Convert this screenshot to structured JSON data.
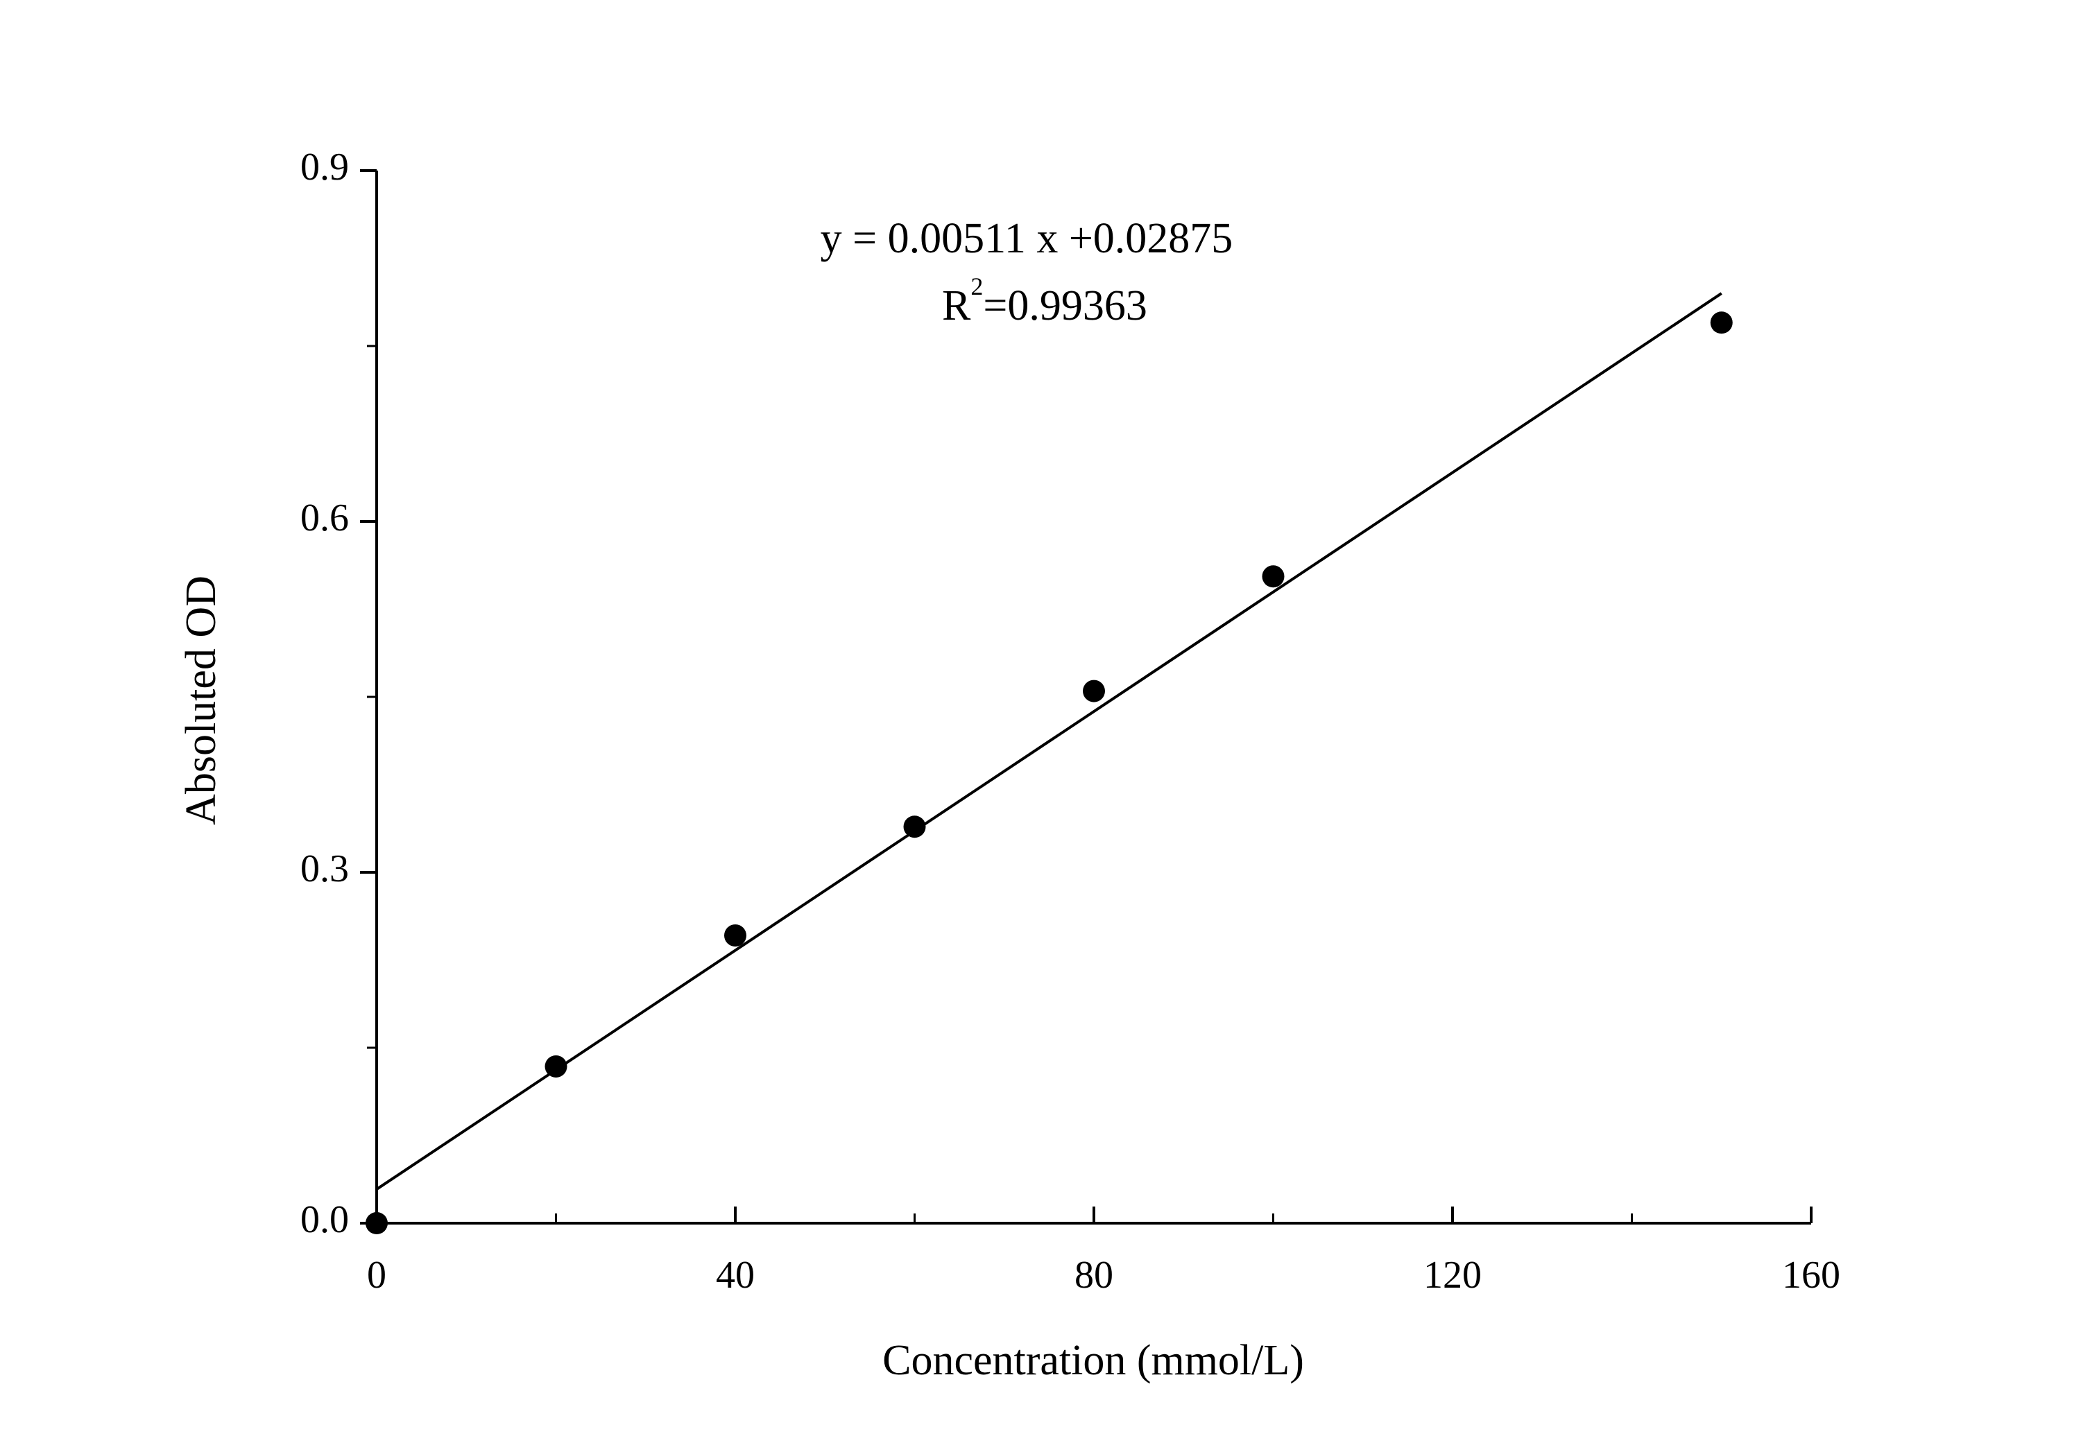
{
  "chart_data": {
    "type": "scatter",
    "x_label": "Concentration (mmol/L)",
    "y_label": "Absoluted OD",
    "annotation": {
      "equation": "y = 0.00511 x +0.02875",
      "r_base": "R",
      "r_exponent": "2",
      "r_value": "=0.99363"
    },
    "x": [
      0,
      20,
      40,
      60,
      80,
      100,
      150
    ],
    "series": [
      {
        "color": "#000000",
        "values": [
          0.0,
          0.134,
          0.246,
          0.339,
          0.455,
          0.553,
          0.77
        ]
      }
    ],
    "fit_line": {
      "color": "#000000",
      "x": [
        0,
        150
      ],
      "values": [
        0.029,
        0.795
      ]
    },
    "xlim": [
      0,
      160
    ],
    "xticks": [
      0,
      40,
      80,
      120,
      160
    ],
    "x_minor_ticks": [
      20,
      60,
      100,
      140
    ],
    "ylim": [
      0,
      0.9
    ],
    "yticks": [
      {
        "value": 0,
        "label": "0.0"
      },
      0.3,
      0.6,
      0.9
    ],
    "y_minor_ticks": [
      0.15,
      0.45,
      0.75
    ],
    "grid": false
  }
}
